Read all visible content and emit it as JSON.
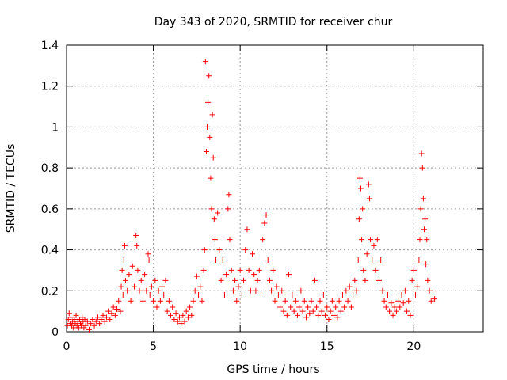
{
  "chart_data": {
    "type": "scatter",
    "title": "Day 343 of 2020, SRMTID for receiver chur",
    "xlabel": "GPS time / hours",
    "ylabel": "SRMTID / TECUs",
    "xlim": [
      0,
      24
    ],
    "ylim": [
      0,
      1.4
    ],
    "xticks": [
      0,
      5,
      10,
      15,
      20
    ],
    "yticks": [
      0,
      0.2,
      0.4,
      0.6,
      0.8,
      1,
      1.2,
      1.4
    ],
    "xtick_labels": [
      "0",
      "5",
      "10",
      "15",
      "20"
    ],
    "ytick_labels": [
      "0",
      "0.2",
      "0.4",
      "0.6",
      "0.8",
      "1",
      "1.2",
      "1.4"
    ],
    "grid": true,
    "marker": "+",
    "marker_color": "#ff0000",
    "series": [
      {
        "name": "SRMTID",
        "points": [
          [
            0.05,
            0.03
          ],
          [
            0.1,
            0.06
          ],
          [
            0.15,
            0.09
          ],
          [
            0.2,
            0.04
          ],
          [
            0.25,
            0.07
          ],
          [
            0.3,
            0.03
          ],
          [
            0.35,
            0.05
          ],
          [
            0.4,
            0.02
          ],
          [
            0.45,
            0.06
          ],
          [
            0.5,
            0.04
          ],
          [
            0.55,
            0.08
          ],
          [
            0.6,
            0.03
          ],
          [
            0.65,
            0.05
          ],
          [
            0.7,
            0.02
          ],
          [
            0.75,
            0.06
          ],
          [
            0.8,
            0.04
          ],
          [
            0.85,
            0.03
          ],
          [
            0.9,
            0.07
          ],
          [
            0.95,
            0.05
          ],
          [
            1.0,
            0.02
          ],
          [
            1.05,
            0.06
          ],
          [
            1.1,
            0.03
          ],
          [
            1.2,
            0.05
          ],
          [
            1.3,
            0.01
          ],
          [
            1.4,
            0.04
          ],
          [
            1.5,
            0.06
          ],
          [
            1.6,
            0.03
          ],
          [
            1.7,
            0.05
          ],
          [
            1.8,
            0.07
          ],
          [
            1.9,
            0.04
          ],
          [
            2.0,
            0.06
          ],
          [
            2.1,
            0.08
          ],
          [
            2.2,
            0.05
          ],
          [
            2.3,
            0.07
          ],
          [
            2.4,
            0.1
          ],
          [
            2.5,
            0.06
          ],
          [
            2.6,
            0.09
          ],
          [
            2.7,
            0.12
          ],
          [
            2.8,
            0.08
          ],
          [
            2.9,
            0.11
          ],
          [
            3.0,
            0.15
          ],
          [
            3.1,
            0.1
          ],
          [
            3.15,
            0.22
          ],
          [
            3.2,
            0.3
          ],
          [
            3.25,
            0.18
          ],
          [
            3.3,
            0.35
          ],
          [
            3.35,
            0.42
          ],
          [
            3.4,
            0.25
          ],
          [
            3.5,
            0.2
          ],
          [
            3.6,
            0.28
          ],
          [
            3.7,
            0.15
          ],
          [
            3.8,
            0.32
          ],
          [
            3.9,
            0.22
          ],
          [
            4.0,
            0.47
          ],
          [
            4.05,
            0.42
          ],
          [
            4.1,
            0.3
          ],
          [
            4.2,
            0.2
          ],
          [
            4.3,
            0.25
          ],
          [
            4.4,
            0.15
          ],
          [
            4.5,
            0.28
          ],
          [
            4.6,
            0.2
          ],
          [
            4.7,
            0.38
          ],
          [
            4.75,
            0.35
          ],
          [
            4.8,
            0.18
          ],
          [
            4.9,
            0.22
          ],
          [
            5.0,
            0.15
          ],
          [
            5.1,
            0.25
          ],
          [
            5.2,
            0.12
          ],
          [
            5.3,
            0.2
          ],
          [
            5.4,
            0.15
          ],
          [
            5.5,
            0.22
          ],
          [
            5.6,
            0.18
          ],
          [
            5.7,
            0.25
          ],
          [
            5.8,
            0.1
          ],
          [
            5.9,
            0.15
          ],
          [
            6.0,
            0.08
          ],
          [
            6.1,
            0.12
          ],
          [
            6.2,
            0.06
          ],
          [
            6.3,
            0.09
          ],
          [
            6.4,
            0.05
          ],
          [
            6.5,
            0.07
          ],
          [
            6.6,
            0.04
          ],
          [
            6.7,
            0.08
          ],
          [
            6.8,
            0.05
          ],
          [
            6.9,
            0.1
          ],
          [
            7.0,
            0.07
          ],
          [
            7.1,
            0.12
          ],
          [
            7.2,
            0.08
          ],
          [
            7.3,
            0.15
          ],
          [
            7.4,
            0.2
          ],
          [
            7.5,
            0.27
          ],
          [
            7.6,
            0.18
          ],
          [
            7.7,
            0.22
          ],
          [
            7.8,
            0.15
          ],
          [
            7.9,
            0.3
          ],
          [
            7.95,
            0.4
          ],
          [
            8.0,
            1.32
          ],
          [
            8.05,
            0.88
          ],
          [
            8.1,
            1.0
          ],
          [
            8.15,
            1.12
          ],
          [
            8.2,
            1.25
          ],
          [
            8.25,
            0.95
          ],
          [
            8.3,
            0.75
          ],
          [
            8.35,
            0.6
          ],
          [
            8.4,
            1.06
          ],
          [
            8.45,
            0.85
          ],
          [
            8.5,
            0.55
          ],
          [
            8.55,
            0.45
          ],
          [
            8.6,
            0.35
          ],
          [
            8.7,
            0.58
          ],
          [
            8.8,
            0.4
          ],
          [
            8.9,
            0.25
          ],
          [
            9.0,
            0.35
          ],
          [
            9.1,
            0.18
          ],
          [
            9.2,
            0.28
          ],
          [
            9.3,
            0.6
          ],
          [
            9.35,
            0.67
          ],
          [
            9.4,
            0.45
          ],
          [
            9.5,
            0.3
          ],
          [
            9.6,
            0.2
          ],
          [
            9.7,
            0.25
          ],
          [
            9.8,
            0.15
          ],
          [
            9.9,
            0.22
          ],
          [
            10.0,
            0.3
          ],
          [
            10.1,
            0.18
          ],
          [
            10.2,
            0.25
          ],
          [
            10.3,
            0.4
          ],
          [
            10.4,
            0.5
          ],
          [
            10.5,
            0.3
          ],
          [
            10.6,
            0.2
          ],
          [
            10.7,
            0.38
          ],
          [
            10.8,
            0.28
          ],
          [
            10.9,
            0.2
          ],
          [
            11.0,
            0.25
          ],
          [
            11.1,
            0.3
          ],
          [
            11.2,
            0.18
          ],
          [
            11.3,
            0.45
          ],
          [
            11.4,
            0.53
          ],
          [
            11.5,
            0.57
          ],
          [
            11.6,
            0.35
          ],
          [
            11.7,
            0.25
          ],
          [
            11.8,
            0.2
          ],
          [
            11.9,
            0.3
          ],
          [
            12.0,
            0.15
          ],
          [
            12.1,
            0.22
          ],
          [
            12.2,
            0.18
          ],
          [
            12.3,
            0.12
          ],
          [
            12.4,
            0.2
          ],
          [
            12.5,
            0.1
          ],
          [
            12.6,
            0.15
          ],
          [
            12.7,
            0.08
          ],
          [
            12.8,
            0.28
          ],
          [
            12.9,
            0.12
          ],
          [
            13.0,
            0.18
          ],
          [
            13.1,
            0.1
          ],
          [
            13.2,
            0.15
          ],
          [
            13.3,
            0.08
          ],
          [
            13.4,
            0.12
          ],
          [
            13.5,
            0.2
          ],
          [
            13.6,
            0.1
          ],
          [
            13.7,
            0.15
          ],
          [
            13.8,
            0.07
          ],
          [
            13.9,
            0.12
          ],
          [
            14.0,
            0.09
          ],
          [
            14.1,
            0.15
          ],
          [
            14.2,
            0.1
          ],
          [
            14.3,
            0.25
          ],
          [
            14.4,
            0.12
          ],
          [
            14.5,
            0.08
          ],
          [
            14.6,
            0.15
          ],
          [
            14.7,
            0.1
          ],
          [
            14.8,
            0.18
          ],
          [
            14.9,
            0.08
          ],
          [
            15.0,
            0.12
          ],
          [
            15.1,
            0.06
          ],
          [
            15.2,
            0.1
          ],
          [
            15.3,
            0.15
          ],
          [
            15.4,
            0.08
          ],
          [
            15.5,
            0.12
          ],
          [
            15.6,
            0.07
          ],
          [
            15.7,
            0.15
          ],
          [
            15.8,
            0.1
          ],
          [
            15.9,
            0.18
          ],
          [
            16.0,
            0.12
          ],
          [
            16.1,
            0.2
          ],
          [
            16.2,
            0.15
          ],
          [
            16.3,
            0.22
          ],
          [
            16.4,
            0.12
          ],
          [
            16.5,
            0.18
          ],
          [
            16.6,
            0.25
          ],
          [
            16.7,
            0.2
          ],
          [
            16.8,
            0.35
          ],
          [
            16.85,
            0.55
          ],
          [
            16.9,
            0.75
          ],
          [
            16.95,
            0.7
          ],
          [
            17.0,
            0.45
          ],
          [
            17.05,
            0.6
          ],
          [
            17.1,
            0.3
          ],
          [
            17.2,
            0.25
          ],
          [
            17.3,
            0.38
          ],
          [
            17.4,
            0.72
          ],
          [
            17.45,
            0.65
          ],
          [
            17.5,
            0.45
          ],
          [
            17.6,
            0.35
          ],
          [
            17.7,
            0.42
          ],
          [
            17.8,
            0.3
          ],
          [
            17.9,
            0.45
          ],
          [
            18.0,
            0.25
          ],
          [
            18.1,
            0.35
          ],
          [
            18.2,
            0.2
          ],
          [
            18.3,
            0.15
          ],
          [
            18.4,
            0.12
          ],
          [
            18.5,
            0.18
          ],
          [
            18.6,
            0.1
          ],
          [
            18.7,
            0.14
          ],
          [
            18.8,
            0.08
          ],
          [
            18.9,
            0.12
          ],
          [
            19.0,
            0.1
          ],
          [
            19.1,
            0.15
          ],
          [
            19.2,
            0.12
          ],
          [
            19.3,
            0.18
          ],
          [
            19.4,
            0.14
          ],
          [
            19.5,
            0.2
          ],
          [
            19.6,
            0.1
          ],
          [
            19.7,
            0.15
          ],
          [
            19.8,
            0.08
          ],
          [
            19.9,
            0.25
          ],
          [
            20.0,
            0.3
          ],
          [
            20.1,
            0.18
          ],
          [
            20.2,
            0.22
          ],
          [
            20.3,
            0.35
          ],
          [
            20.35,
            0.45
          ],
          [
            20.4,
            0.6
          ],
          [
            20.45,
            0.87
          ],
          [
            20.5,
            0.8
          ],
          [
            20.55,
            0.65
          ],
          [
            20.6,
            0.5
          ],
          [
            20.65,
            0.55
          ],
          [
            20.7,
            0.33
          ],
          [
            20.75,
            0.45
          ],
          [
            20.8,
            0.25
          ],
          [
            20.9,
            0.2
          ],
          [
            21.0,
            0.15
          ],
          [
            21.1,
            0.18
          ],
          [
            21.2,
            0.16
          ]
        ]
      }
    ]
  }
}
